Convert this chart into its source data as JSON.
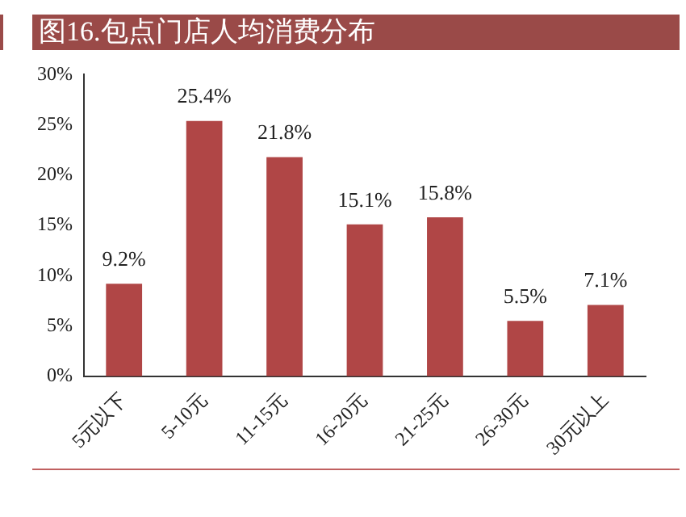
{
  "chart_data": {
    "type": "bar",
    "title": "图16.包点门店人均消费分布",
    "categories": [
      "5元以下",
      "5-10元",
      "11-15元",
      "16-20元",
      "21-25元",
      "26-30元",
      "30元以上"
    ],
    "values": [
      9.2,
      25.4,
      21.8,
      15.1,
      15.8,
      5.5,
      7.1
    ],
    "value_labels": [
      "9.2%",
      "25.4%",
      "21.8%",
      "15.1%",
      "15.8%",
      "5.5%",
      "7.1%"
    ],
    "color": "#b04646",
    "ylim": [
      0,
      30
    ],
    "yticks": [
      {
        "value": 0,
        "label": "0%"
      },
      {
        "value": 5,
        "label": "5%"
      },
      {
        "value": 10,
        "label": "10%"
      },
      {
        "value": 15,
        "label": "15%"
      },
      {
        "value": 20,
        "label": "20%"
      },
      {
        "value": 25,
        "label": "25%"
      },
      {
        "value": 30,
        "label": "30%"
      }
    ],
    "grid": false,
    "legend": false
  }
}
